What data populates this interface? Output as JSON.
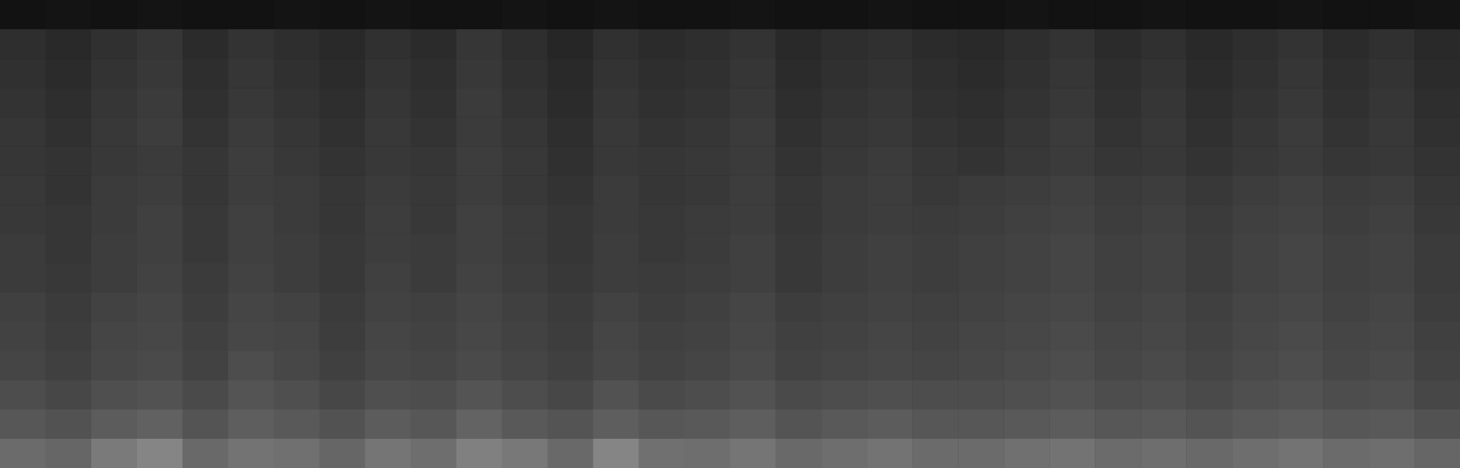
{
  "chart_data": {
    "type": "heatmap",
    "tick_labels": false,
    "xlim": [
      0,
      32
    ],
    "ylim": [
      0,
      16
    ],
    "cells": [
      [
        0.07,
        0.08,
        0.07,
        0.08,
        0.07,
        0.07,
        0.08,
        0.07,
        0.08,
        0.07,
        0.07,
        0.08,
        0.07,
        0.08,
        0.07,
        0.07,
        0.08,
        0.07,
        0.07,
        0.08,
        0.07,
        0.07,
        0.08,
        0.07,
        0.07,
        0.08,
        0.07,
        0.07,
        0.08,
        0.07,
        0.07,
        0.08
      ],
      [
        0.18,
        0.16,
        0.19,
        0.21,
        0.17,
        0.2,
        0.18,
        0.16,
        0.19,
        0.17,
        0.21,
        0.18,
        0.15,
        0.19,
        0.17,
        0.18,
        0.2,
        0.16,
        0.18,
        0.19,
        0.17,
        0.16,
        0.18,
        0.2,
        0.17,
        0.19,
        0.16,
        0.18,
        0.2,
        0.17,
        0.19,
        0.16
      ],
      [
        0.19,
        0.17,
        0.2,
        0.22,
        0.18,
        0.21,
        0.19,
        0.17,
        0.2,
        0.18,
        0.22,
        0.19,
        0.16,
        0.2,
        0.18,
        0.19,
        0.21,
        0.17,
        0.19,
        0.2,
        0.18,
        0.17,
        0.19,
        0.21,
        0.18,
        0.2,
        0.17,
        0.19,
        0.21,
        0.18,
        0.2,
        0.17
      ],
      [
        0.2,
        0.18,
        0.21,
        0.23,
        0.19,
        0.22,
        0.2,
        0.18,
        0.21,
        0.19,
        0.23,
        0.2,
        0.17,
        0.21,
        0.19,
        0.2,
        0.22,
        0.18,
        0.2,
        0.21,
        0.19,
        0.18,
        0.2,
        0.22,
        0.19,
        0.21,
        0.18,
        0.2,
        0.22,
        0.19,
        0.21,
        0.18
      ],
      [
        0.21,
        0.19,
        0.22,
        0.24,
        0.2,
        0.23,
        0.21,
        0.19,
        0.22,
        0.2,
        0.23,
        0.21,
        0.18,
        0.22,
        0.2,
        0.21,
        0.23,
        0.19,
        0.21,
        0.22,
        0.2,
        0.19,
        0.21,
        0.23,
        0.2,
        0.22,
        0.19,
        0.21,
        0.23,
        0.2,
        0.22,
        0.19
      ],
      [
        0.21,
        0.2,
        0.22,
        0.23,
        0.21,
        0.24,
        0.22,
        0.2,
        0.22,
        0.21,
        0.24,
        0.22,
        0.19,
        0.22,
        0.21,
        0.22,
        0.23,
        0.2,
        0.22,
        0.23,
        0.21,
        0.2,
        0.22,
        0.23,
        0.21,
        0.22,
        0.2,
        0.22,
        0.23,
        0.21,
        0.22,
        0.2
      ],
      [
        0.22,
        0.2,
        0.23,
        0.24,
        0.21,
        0.24,
        0.23,
        0.21,
        0.23,
        0.22,
        0.24,
        0.22,
        0.2,
        0.23,
        0.21,
        0.22,
        0.24,
        0.21,
        0.23,
        0.24,
        0.22,
        0.23,
        0.24,
        0.25,
        0.23,
        0.24,
        0.22,
        0.24,
        0.25,
        0.23,
        0.24,
        0.21
      ],
      [
        0.22,
        0.21,
        0.23,
        0.25,
        0.22,
        0.25,
        0.23,
        0.21,
        0.24,
        0.22,
        0.25,
        0.23,
        0.21,
        0.23,
        0.22,
        0.23,
        0.24,
        0.21,
        0.23,
        0.24,
        0.23,
        0.24,
        0.25,
        0.26,
        0.24,
        0.25,
        0.23,
        0.25,
        0.26,
        0.24,
        0.25,
        0.22
      ],
      [
        0.23,
        0.21,
        0.24,
        0.25,
        0.22,
        0.25,
        0.24,
        0.22,
        0.24,
        0.23,
        0.25,
        0.23,
        0.21,
        0.24,
        0.22,
        0.23,
        0.25,
        0.22,
        0.24,
        0.25,
        0.24,
        0.25,
        0.26,
        0.27,
        0.25,
        0.26,
        0.24,
        0.26,
        0.27,
        0.25,
        0.26,
        0.23
      ],
      [
        0.23,
        0.22,
        0.24,
        0.26,
        0.23,
        0.26,
        0.24,
        0.22,
        0.25,
        0.23,
        0.26,
        0.24,
        0.22,
        0.24,
        0.23,
        0.24,
        0.25,
        0.22,
        0.24,
        0.25,
        0.24,
        0.25,
        0.26,
        0.27,
        0.25,
        0.26,
        0.24,
        0.26,
        0.27,
        0.25,
        0.26,
        0.23
      ],
      [
        0.25,
        0.23,
        0.26,
        0.27,
        0.24,
        0.27,
        0.26,
        0.23,
        0.26,
        0.25,
        0.27,
        0.25,
        0.23,
        0.26,
        0.24,
        0.25,
        0.27,
        0.24,
        0.25,
        0.26,
        0.25,
        0.26,
        0.27,
        0.28,
        0.26,
        0.27,
        0.25,
        0.27,
        0.28,
        0.26,
        0.27,
        0.24
      ],
      [
        0.26,
        0.24,
        0.27,
        0.28,
        0.25,
        0.28,
        0.27,
        0.24,
        0.27,
        0.26,
        0.28,
        0.26,
        0.24,
        0.27,
        0.25,
        0.26,
        0.28,
        0.25,
        0.26,
        0.27,
        0.26,
        0.27,
        0.28,
        0.29,
        0.27,
        0.28,
        0.26,
        0.28,
        0.29,
        0.27,
        0.28,
        0.25
      ],
      [
        0.27,
        0.25,
        0.28,
        0.29,
        0.26,
        0.3,
        0.28,
        0.25,
        0.28,
        0.27,
        0.29,
        0.27,
        0.25,
        0.28,
        0.26,
        0.27,
        0.29,
        0.26,
        0.27,
        0.28,
        0.27,
        0.28,
        0.29,
        0.3,
        0.28,
        0.29,
        0.27,
        0.29,
        0.3,
        0.28,
        0.29,
        0.26
      ],
      [
        0.3,
        0.28,
        0.31,
        0.32,
        0.29,
        0.33,
        0.31,
        0.28,
        0.31,
        0.3,
        0.33,
        0.3,
        0.28,
        0.32,
        0.29,
        0.3,
        0.32,
        0.29,
        0.3,
        0.31,
        0.3,
        0.3,
        0.31,
        0.32,
        0.3,
        0.31,
        0.29,
        0.31,
        0.32,
        0.3,
        0.31,
        0.28
      ],
      [
        0.34,
        0.32,
        0.36,
        0.38,
        0.33,
        0.37,
        0.35,
        0.32,
        0.36,
        0.34,
        0.39,
        0.35,
        0.33,
        0.37,
        0.34,
        0.35,
        0.37,
        0.33,
        0.35,
        0.36,
        0.34,
        0.34,
        0.35,
        0.36,
        0.34,
        0.35,
        0.33,
        0.35,
        0.36,
        0.34,
        0.35,
        0.32
      ],
      [
        0.42,
        0.4,
        0.48,
        0.52,
        0.41,
        0.45,
        0.44,
        0.4,
        0.46,
        0.43,
        0.5,
        0.47,
        0.41,
        0.52,
        0.44,
        0.43,
        0.46,
        0.41,
        0.43,
        0.45,
        0.42,
        0.42,
        0.44,
        0.45,
        0.42,
        0.43,
        0.41,
        0.43,
        0.45,
        0.42,
        0.43,
        0.4
      ]
    ]
  }
}
